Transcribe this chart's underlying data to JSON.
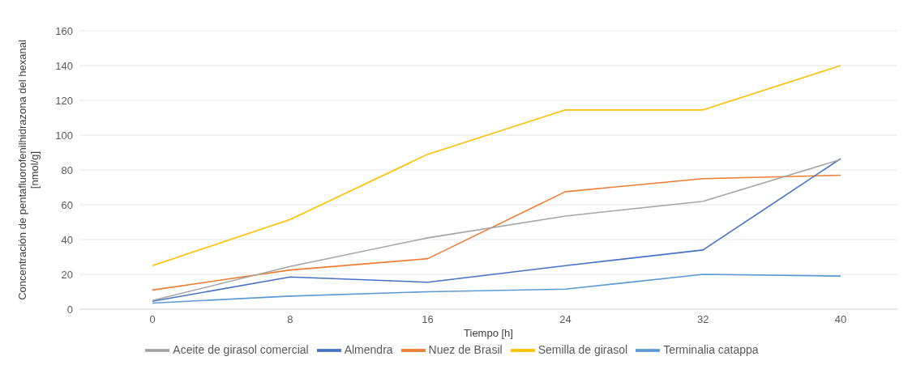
{
  "chart_data": {
    "type": "line",
    "xlabel": "Tiempo [h]",
    "ylabel": "Concentración de  pentafluorofenilhidrazona del hexanal [nmol/g]",
    "categories": [
      "0",
      "8",
      "16",
      "24",
      "32",
      "40"
    ],
    "series": [
      {
        "name": "Terminalia catappa",
        "color": "#5b9bd5",
        "values": [
          3.5,
          7.5,
          10,
          11.5,
          20,
          19
        ]
      },
      {
        "name": "Nuez de Brasil",
        "color": "#ed7d31",
        "values": [
          11,
          22.5,
          29,
          67.5,
          75,
          77
        ]
      },
      {
        "name": "Semilla de girasol",
        "color": "#ffc000",
        "values": [
          25,
          51.5,
          89,
          114.5,
          114.5,
          140
        ]
      },
      {
        "name": "Almendra",
        "color": "#4472c4",
        "values": [
          4.5,
          18.5,
          15.5,
          25,
          34,
          86.5
        ]
      },
      {
        "name": "Aceite de girasol comercial",
        "color": "#a5a5a5",
        "values": [
          5,
          24.5,
          41,
          53.5,
          62,
          86
        ]
      }
    ],
    "ylim": [
      0,
      160
    ],
    "yticks": [
      0,
      20,
      40,
      60,
      80,
      100,
      120,
      140,
      160
    ],
    "grid": "y",
    "legend": "bottom",
    "marker": "none",
    "line_style": "solid"
  }
}
